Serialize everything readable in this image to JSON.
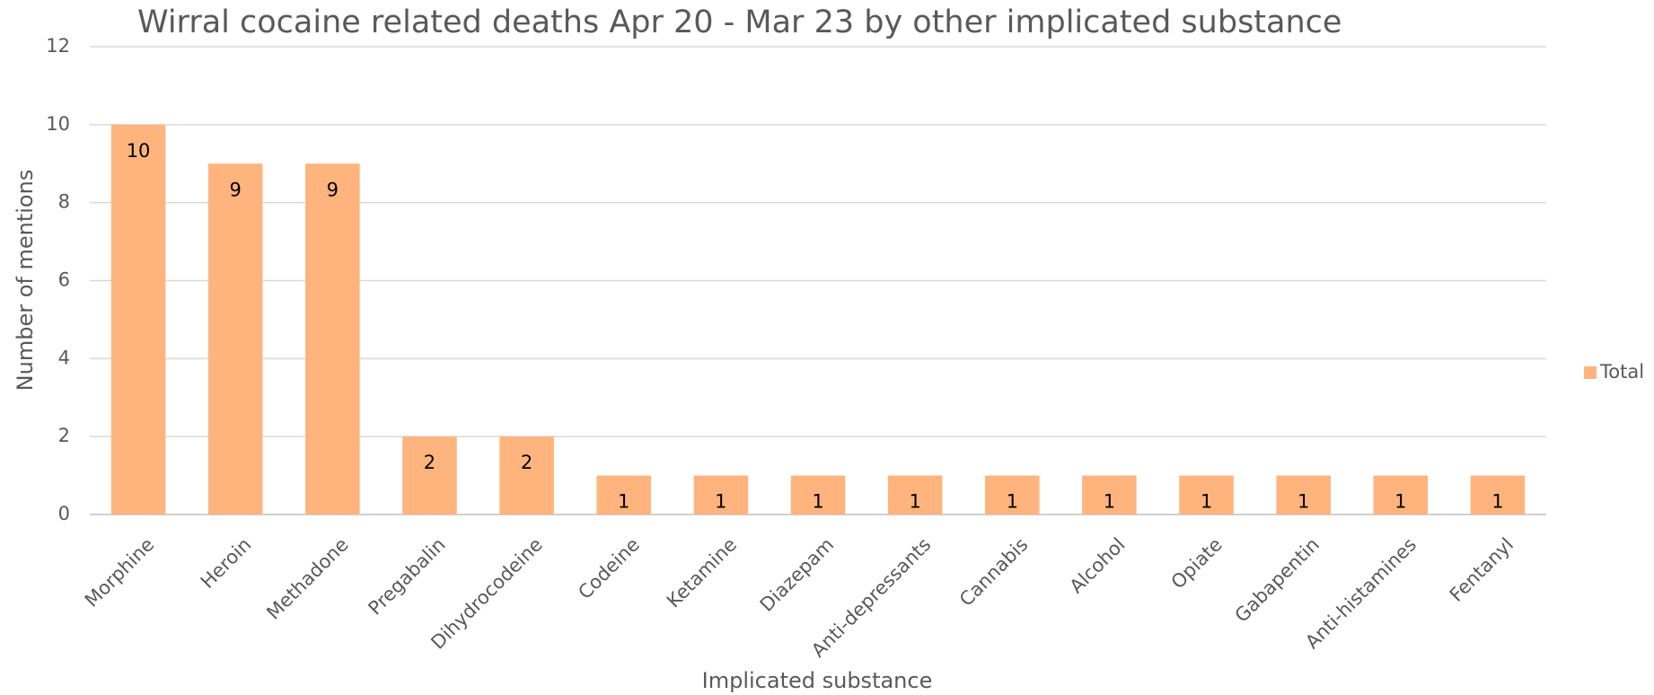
{
  "chart_data": {
    "type": "bar",
    "title": "Wirral cocaine related deaths Apr 20 - Mar 23 by other implicated substance",
    "x_label": "Implicated substance",
    "y_label": "Number of mentions",
    "categories": [
      "Morphine",
      "Heroin",
      "Methadone",
      "Pregabalin",
      "Dihydrocodeine",
      "Codeine",
      "Ketamine",
      "Diazepam",
      "Anti-depressants",
      "Cannabis",
      "Alcohol",
      "Opiate",
      "Gabapentin",
      "Anti-histamines",
      "Fentanyl"
    ],
    "series": [
      {
        "name": "Total",
        "color": "#ffb47e",
        "values": [
          10,
          9,
          9,
          2,
          2,
          1,
          1,
          1,
          1,
          1,
          1,
          1,
          1,
          1,
          1
        ]
      }
    ],
    "ylim": [
      0,
      12
    ],
    "yticks": [
      0,
      2,
      4,
      6,
      8,
      10,
      12
    ],
    "grid": true,
    "legend": "right",
    "data_labels": true
  }
}
